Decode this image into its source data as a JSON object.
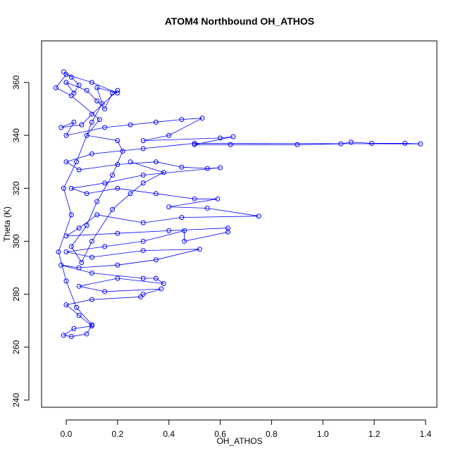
{
  "chart_data": {
    "type": "line",
    "title": "ATOM4 Northbound OH_ATHOS",
    "x_label": "OH_ATHOS",
    "y_label": "Theta (K)",
    "x": [
      -0.01,
      0.02,
      0.05,
      0.03,
      0.0,
      0.08,
      0.12,
      0.15,
      0.18,
      0.2,
      0.1,
      0.06,
      -0.02,
      0.03,
      0.0,
      0.15,
      0.25,
      0.35,
      0.45,
      0.53,
      0.4,
      0.3,
      0.6,
      0.65,
      0.5,
      0.64,
      0.9,
      1.07,
      1.11,
      1.19,
      1.32,
      1.38,
      0.5,
      0.3,
      0.1,
      0.0,
      0.05,
      0.2,
      0.35,
      0.45,
      0.55,
      0.6,
      0.3,
      0.15,
      0.02,
      0.08,
      0.2,
      0.35,
      0.5,
      0.59,
      0.4,
      0.55,
      0.75,
      0.45,
      0.3,
      0.12,
      0.05,
      0.0,
      0.2,
      0.4,
      0.63,
      0.63,
      0.46,
      0.46,
      0.3,
      0.15,
      0.0,
      0.1,
      0.3,
      0.52,
      0.35,
      0.2,
      0.05,
      -0.02,
      0.1,
      0.3,
      0.35,
      0.38,
      0.2,
      0.05,
      0.15,
      0.37,
      0.3,
      0.29,
      0.1,
      0.0,
      0.05,
      0.1,
      0.03,
      -0.01,
      0.02,
      0.08,
      0.1,
      0.04,
      0.0,
      -0.03,
      0.02,
      -0.01,
      0.04,
      0.1,
      0.14,
      0.12,
      0.2,
      0.1,
      0.0,
      -0.04,
      0.02,
      0.13,
      0.08,
      0.2,
      0.22,
      0.18,
      0.12,
      0.08,
      0.02,
      0.06,
      0.1,
      0.18,
      0.25,
      0.3,
      0.38,
      0.25
    ],
    "series": [
      {
        "color": "#0000ff",
        "values": [
          364,
          362,
          359,
          356,
          360,
          357,
          353,
          350,
          356,
          357,
          348,
          344,
          343,
          345,
          340,
          343,
          344,
          345,
          346,
          346.5,
          340,
          338,
          339,
          339.5,
          336.5,
          336.5,
          336.5,
          336.8,
          337.4,
          337,
          337,
          336.8,
          337,
          335,
          333,
          330,
          327,
          329,
          330,
          328,
          327.5,
          327.8,
          325,
          322,
          320,
          318,
          320,
          318,
          316,
          316,
          313,
          312.5,
          309.5,
          309,
          307,
          310,
          305,
          302,
          303,
          304,
          305,
          303.5,
          300,
          304,
          300,
          298,
          296,
          294,
          296.5,
          297,
          293,
          291,
          290,
          291,
          288,
          286,
          286,
          284,
          286,
          283,
          281,
          282,
          280,
          279,
          278,
          276,
          272,
          268,
          267,
          264.5,
          264,
          265,
          268.5,
          275,
          285,
          296,
          310,
          320,
          330,
          345,
          352,
          358,
          356,
          360,
          363,
          358,
          355,
          346,
          340,
          338,
          334,
          325,
          315,
          306,
          298,
          292,
          300,
          312,
          318,
          322,
          326,
          330
        ]
      }
    ],
    "xlim": [
      -0.096,
      1.444
    ],
    "ylim": [
      237.3,
      375.7
    ],
    "xticks": [
      {
        "value": 0,
        "label": "0.0"
      },
      0.2,
      0.4,
      0.6,
      0.8,
      {
        "value": 1,
        "label": "1.0"
      },
      1.2,
      1.4
    ],
    "yticks": [
      240,
      260,
      280,
      300,
      320,
      340,
      360
    ]
  }
}
